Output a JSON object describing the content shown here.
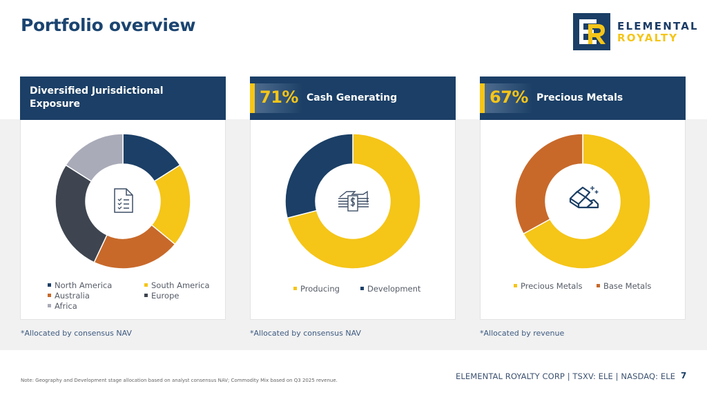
{
  "page": {
    "title": "Portfolio overview",
    "page_number": "7",
    "footer": "ELEMENTAL ROYALTY CORP | TSXV: ELE | NASDAQ: ELE",
    "footnote": "Note: Geography and Development stage allocation based on analyst consensus NAV; Commodity Mix based on Q3 2025 revenue."
  },
  "logo": {
    "line1": "ELEMENTAL",
    "line2": "ROYALTY",
    "icon": "er-monogram-icon"
  },
  "colors": {
    "navy": "#1b3f66",
    "gold": "#f5c518",
    "copper": "#c8692a",
    "charcoal": "#3e4550",
    "silver": "#a9abb8"
  },
  "cards": [
    {
      "header": "Diversified Jurisdictional Exposure",
      "icon": "checklist-document-icon",
      "note": "*Allocated by consensus NAV"
    },
    {
      "header_pct": "71%",
      "header": "Cash Generating",
      "icon": "cash-stack-icon",
      "note": "*Allocated by consensus NAV"
    },
    {
      "header_pct": "67%",
      "header": "Precious Metals",
      "icon": "gold-bars-icon",
      "note": "*Allocated by revenue"
    }
  ],
  "chart_data": [
    {
      "type": "pie",
      "donut": true,
      "title": "Diversified Jurisdictional Exposure",
      "categories": [
        "North America",
        "South America",
        "Australia",
        "Europe",
        "Africa"
      ],
      "values": [
        16,
        20,
        21,
        27,
        16
      ],
      "unit": "%",
      "colors": [
        "#1b3f66",
        "#f5c518",
        "#c8692a",
        "#3e4550",
        "#a9abb8"
      ],
      "legend": "bottom"
    },
    {
      "type": "pie",
      "donut": true,
      "title": "Cash Generating",
      "categories": [
        "Producing",
        "Development"
      ],
      "values": [
        71,
        29
      ],
      "unit": "%",
      "colors": [
        "#f5c518",
        "#1b3f66"
      ],
      "legend": "bottom"
    },
    {
      "type": "pie",
      "donut": true,
      "title": "Precious Metals",
      "categories": [
        "Precious Metals",
        "Base Metals"
      ],
      "values": [
        67,
        33
      ],
      "unit": "%",
      "colors": [
        "#f5c518",
        "#c8692a"
      ],
      "legend": "bottom"
    }
  ]
}
